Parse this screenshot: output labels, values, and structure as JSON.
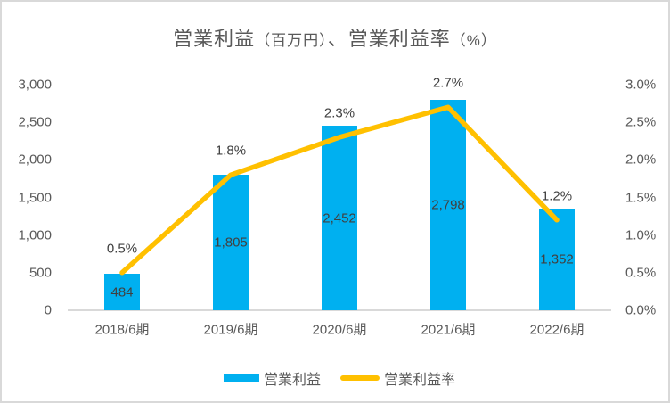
{
  "chart_data": {
    "type": "bar",
    "combo": "bar+line",
    "title": "営業利益（百万円）、営業利益率（%）",
    "title_parts": [
      {
        "text": "営業利益",
        "size": "large"
      },
      {
        "text": "（百万円）",
        "size": "small"
      },
      {
        "text": "、営業利益率",
        "size": "large"
      },
      {
        "text": "（%）",
        "size": "small"
      }
    ],
    "categories": [
      "2018/6期",
      "2019/6期",
      "2020/6期",
      "2021/6期",
      "2022/6期"
    ],
    "series": [
      {
        "name": "営業利益",
        "type": "bar",
        "axis": "left",
        "color": "#00B0F0",
        "values": [
          484,
          1805,
          2452,
          2798,
          1352
        ],
        "labels": [
          "484",
          "1,805",
          "2,452",
          "2,798",
          "1,352"
        ]
      },
      {
        "name": "営業利益率",
        "type": "line",
        "axis": "right",
        "color": "#FFC000",
        "values": [
          0.5,
          1.8,
          2.3,
          2.7,
          1.2
        ],
        "labels": [
          "0.5%",
          "1.8%",
          "2.3%",
          "2.7%",
          "1.2%"
        ]
      }
    ],
    "left_axis": {
      "min": 0,
      "max": 3000,
      "tick_labels": [
        "3,000",
        "2,500",
        "2,000",
        "1,500",
        "1,000",
        "500",
        "0"
      ]
    },
    "right_axis": {
      "min": 0,
      "max": 3.0,
      "tick_labels": [
        "3.0%",
        "2.5%",
        "2.0%",
        "1.5%",
        "1.0%",
        "0.5%",
        "0.0%"
      ]
    },
    "grid": false,
    "legend_position": "bottom",
    "colors": {
      "bar": "#00B0F0",
      "line": "#FFC000",
      "title_text": "#595959",
      "axis_text": "#595959",
      "data_label_text": "#404040",
      "axis_line": "#D9D9D9",
      "border": "#D9D9D9",
      "background": "#FFFFFF"
    }
  }
}
